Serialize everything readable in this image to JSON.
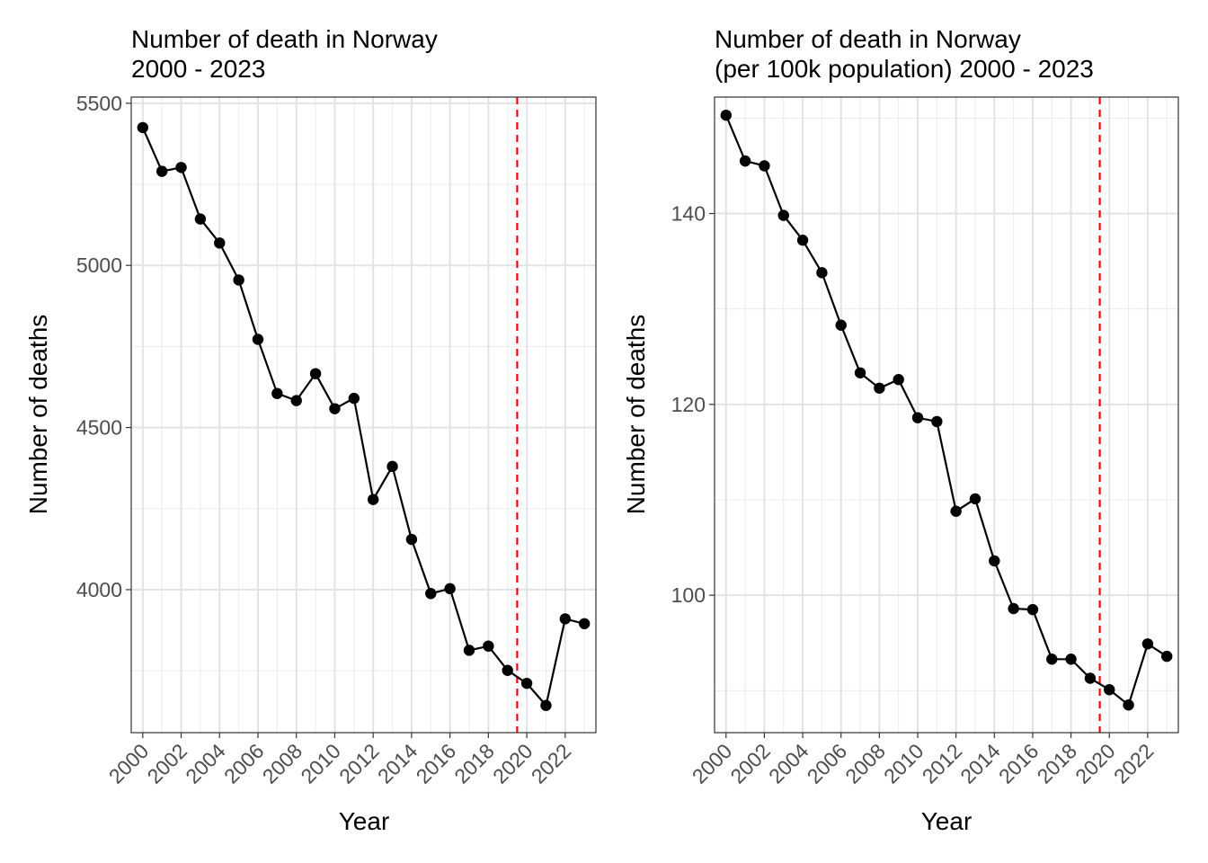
{
  "chart_data": [
    {
      "type": "line",
      "title": "Number of death in Norway",
      "subtitle": "2000 - 2023",
      "xlabel": "Year",
      "ylabel": "Number of deaths",
      "x": [
        2000,
        2001,
        2002,
        2003,
        2004,
        2005,
        2006,
        2007,
        2008,
        2009,
        2010,
        2011,
        2012,
        2013,
        2014,
        2015,
        2016,
        2017,
        2018,
        2019,
        2020,
        2021,
        2022,
        2023
      ],
      "values": [
        5425,
        5290,
        5302,
        5143,
        5069,
        4955,
        4772,
        4605,
        4583,
        4666,
        4558,
        4590,
        4278,
        4380,
        4155,
        3988,
        4003,
        3813,
        3826,
        3751,
        3711,
        3643,
        3910,
        3895
      ],
      "ylim": [
        3559,
        5519
      ],
      "xlim": [
        1999.4,
        2023.6
      ],
      "yticks": [
        4000,
        4500,
        5000,
        5500
      ],
      "xticks": [
        2000,
        2002,
        2004,
        2006,
        2008,
        2010,
        2012,
        2014,
        2016,
        2018,
        2020,
        2022
      ],
      "vline": 2019.5,
      "vline_color": "#ff0000",
      "line_color": "#000000",
      "grid": true
    },
    {
      "type": "line",
      "title": "Number of death in Norway",
      "subtitle": "(per 100k population) 2000 - 2023",
      "xlabel": "Year",
      "ylabel": "Number of deaths",
      "x": [
        2000,
        2001,
        2002,
        2003,
        2004,
        2005,
        2006,
        2007,
        2008,
        2009,
        2010,
        2011,
        2012,
        2013,
        2014,
        2015,
        2016,
        2017,
        2018,
        2019,
        2020,
        2021,
        2022,
        2023
      ],
      "values": [
        150.3,
        145.5,
        145.0,
        139.8,
        137.2,
        133.8,
        128.3,
        123.3,
        121.7,
        122.6,
        118.6,
        118.2,
        108.8,
        110.1,
        103.6,
        98.6,
        98.5,
        93.3,
        93.3,
        91.3,
        90.1,
        88.5,
        94.9,
        93.6
      ],
      "ylim": [
        85.6,
        152.2
      ],
      "xlim": [
        1999.4,
        2023.6
      ],
      "yticks": [
        100,
        120,
        140
      ],
      "xticks": [
        2000,
        2002,
        2004,
        2006,
        2008,
        2010,
        2012,
        2014,
        2016,
        2018,
        2020,
        2022
      ],
      "vline": 2019.5,
      "vline_color": "#ff0000",
      "line_color": "#000000",
      "grid": true
    }
  ]
}
